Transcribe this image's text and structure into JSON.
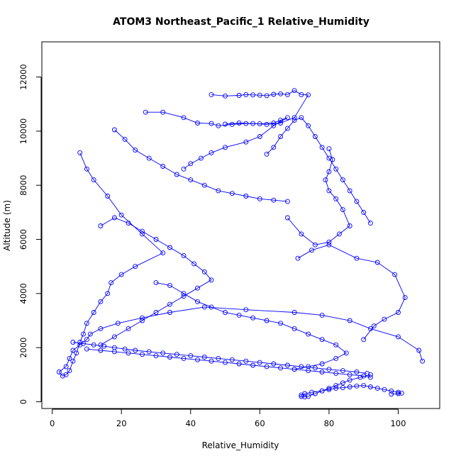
{
  "chart_data": {
    "type": "scatter",
    "title": "ATOM3 Northeast_Pacific_1 Relative_Humidity",
    "xlabel": "Relative_Humidity",
    "ylabel": "Altitude (m)",
    "xlim": [
      -3,
      112
    ],
    "ylim": [
      -250,
      13300
    ],
    "x_ticks": [
      0,
      20,
      40,
      60,
      80,
      100
    ],
    "y_ticks": [
      0,
      2000,
      4000,
      6000,
      8000,
      10000,
      12000
    ],
    "grid": false,
    "color": "#0000ff",
    "series": [
      {
        "x": [
          8,
          10,
          12,
          16,
          20,
          26,
          32,
          24,
          20,
          17,
          16,
          14,
          12,
          10,
          9,
          8,
          7,
          6,
          5,
          4,
          3,
          2,
          4,
          5,
          6,
          8,
          10,
          11,
          14,
          19,
          26,
          34,
          44,
          56,
          70,
          78,
          86,
          92,
          100,
          106,
          107
        ],
        "y": [
          9200,
          8600,
          8200,
          7600,
          6900,
          6200,
          5500,
          5000,
          4700,
          4400,
          4000,
          3700,
          3300,
          2900,
          2500,
          2200,
          1800,
          1500,
          1150,
          1000,
          950,
          1100,
          1300,
          1600,
          1900,
          2100,
          2300,
          2500,
          2700,
          2900,
          3100,
          3300,
          3500,
          3400,
          3300,
          3200,
          3000,
          2700,
          2400,
          1900,
          1500
        ]
      },
      {
        "x": [
          92,
          89,
          86,
          84,
          82,
          80,
          78,
          76,
          74,
          73,
          72,
          72,
          73,
          75,
          78,
          80,
          82,
          84,
          86,
          88,
          90,
          92,
          94,
          96,
          98,
          100,
          101,
          100,
          98
        ],
        "y": [
          1000,
          900,
          800,
          700,
          600,
          500,
          400,
          300,
          200,
          180,
          190,
          250,
          300,
          350,
          400,
          450,
          500,
          520,
          550,
          580,
          600,
          550,
          500,
          450,
          400,
          350,
          320,
          300,
          280
        ]
      },
      {
        "x": [
          46,
          50,
          54,
          56,
          58,
          60,
          62,
          64,
          66,
          68,
          70,
          72,
          74,
          70,
          66,
          62,
          58,
          54,
          50
        ],
        "y": [
          11350,
          11300,
          11320,
          11350,
          11340,
          11330,
          11310,
          11360,
          11380,
          11350,
          11500,
          11350,
          11340,
          10500,
          10300,
          10250,
          10280,
          10300,
          10260
        ]
      },
      {
        "x": [
          27,
          32,
          38,
          42,
          46,
          48,
          52,
          56,
          60,
          64,
          66,
          68,
          64,
          60,
          56,
          50,
          46,
          43,
          40,
          38
        ],
        "y": [
          10700,
          10700,
          10500,
          10300,
          10280,
          10200,
          10250,
          10280,
          10270,
          10300,
          10400,
          10500,
          10200,
          9800,
          9600,
          9400,
          9200,
          9000,
          8800,
          8600
        ]
      },
      {
        "x": [
          62,
          64,
          66,
          68,
          70,
          72,
          74,
          76,
          78,
          80,
          82,
          84,
          86,
          88,
          90,
          92
        ],
        "y": [
          9150,
          9400,
          9800,
          10100,
          10400,
          10500,
          10200,
          9800,
          9400,
          9000,
          8600,
          8200,
          7800,
          7400,
          7000,
          6600
        ]
      },
      {
        "x": [
          80,
          81,
          80,
          79,
          80,
          82,
          84,
          86,
          83,
          80,
          76,
          72,
          68
        ],
        "y": [
          9350,
          8950,
          8500,
          8200,
          7800,
          7500,
          7100,
          6500,
          6200,
          5900,
          5800,
          6200,
          6800
        ]
      },
      {
        "x": [
          71,
          75,
          80,
          88,
          94,
          99,
          102,
          100,
          96,
          93,
          90
        ],
        "y": [
          5300,
          5600,
          5800,
          5300,
          5150,
          4700,
          3850,
          3300,
          3050,
          2800,
          2300
        ]
      },
      {
        "x": [
          18,
          21,
          24,
          28,
          32,
          36,
          40,
          44,
          48,
          52,
          56,
          60,
          64,
          68
        ],
        "y": [
          10050,
          9700,
          9300,
          9000,
          8700,
          8400,
          8200,
          8000,
          7800,
          7700,
          7600,
          7500,
          7450,
          7400
        ]
      },
      {
        "x": [
          14,
          18,
          22,
          26,
          30,
          34,
          38,
          41,
          44,
          46,
          42,
          38,
          34,
          30,
          26,
          22,
          18,
          14
        ],
        "y": [
          6500,
          6800,
          6600,
          6300,
          6000,
          5700,
          5400,
          5100,
          4800,
          4500,
          4200,
          3900,
          3600,
          3300,
          3000,
          2700,
          2400,
          2100
        ]
      },
      {
        "x": [
          30,
          34,
          38,
          42,
          46,
          50,
          54,
          58,
          62,
          66,
          70,
          74,
          78,
          82,
          85,
          82,
          78,
          74,
          70
        ],
        "y": [
          4400,
          4300,
          4000,
          3700,
          3500,
          3300,
          3200,
          3100,
          3000,
          2900,
          2700,
          2500,
          2300,
          2100,
          1800,
          1600,
          1400,
          1300,
          1200
        ]
      },
      {
        "x": [
          10,
          14,
          18,
          22,
          26,
          30,
          34,
          38,
          42,
          46,
          50,
          54,
          58,
          62,
          66,
          70,
          74,
          78,
          82,
          86,
          90,
          92
        ],
        "y": [
          1950,
          1900,
          1850,
          1800,
          1750,
          1700,
          1650,
          1600,
          1550,
          1500,
          1450,
          1400,
          1350,
          1300,
          1250,
          1200,
          1150,
          1100,
          1050,
          1000,
          950,
          900
        ]
      },
      {
        "x": [
          6,
          9,
          12,
          15,
          18,
          21,
          24,
          28,
          32,
          36,
          40,
          44,
          48,
          52,
          56,
          60,
          64,
          68,
          72,
          76,
          80,
          84,
          88,
          91
        ],
        "y": [
          2200,
          2150,
          2100,
          2050,
          2000,
          1950,
          1900,
          1850,
          1800,
          1750,
          1700,
          1650,
          1600,
          1550,
          1500,
          1450,
          1400,
          1350,
          1300,
          1250,
          1200,
          1150,
          1100,
          1050
        ]
      }
    ]
  }
}
